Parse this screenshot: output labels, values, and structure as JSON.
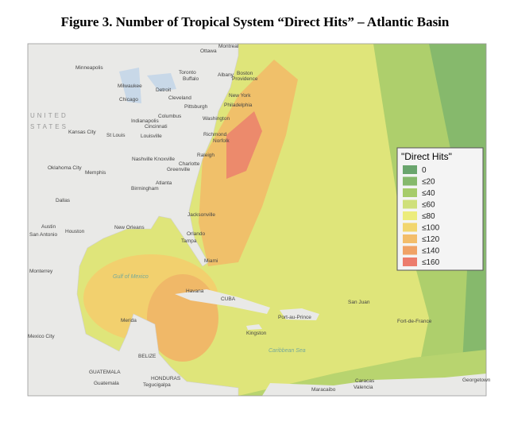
{
  "header": {
    "title": "Figure 3. Number of Tropical System “Direct Hits” – Atlantic Basin"
  },
  "map": {
    "labels": [
      "Montreal",
      "Ottawa",
      "Toronto",
      "Buffalo",
      "Albany",
      "Boston",
      "Providence",
      "Minneapolis",
      "Milwaukee",
      "Detroit",
      "Chicago",
      "Cleveland",
      "New York",
      "Pittsburgh",
      "Philadelphia",
      "Columbus",
      "Indianapolis",
      "Cincinnati",
      "Washington",
      "Kansas City",
      "St Louis",
      "Louisville",
      "Richmond",
      "Norfolk",
      "Raleigh",
      "Nashville",
      "Knoxville",
      "Charlotte",
      "Greenville",
      "Oklahoma City",
      "Memphis",
      "Atlanta",
      "Birmingham",
      "Dallas",
      "Jacksonville",
      "Austin",
      "Houston",
      "San Antonio",
      "New Orleans",
      "Orlando",
      "Tampa",
      "Miami",
      "Monterrey",
      "Havana",
      "CUBA",
      "San Juan",
      "Port-au-Prince",
      "Merida",
      "Kingston",
      "Mexico City",
      "BELIZE",
      "GUATEMALA",
      "Guatemala",
      "HONDURAS",
      "Tegucigalpa",
      "Maracaibo",
      "Caracas",
      "Valencia",
      "Georgetown",
      "Fort-de-France"
    ],
    "regions": [
      "UNITED",
      "STATES"
    ],
    "seas": [
      "Gulf of Mexico",
      "Caribbean Sea"
    ]
  },
  "legend": {
    "title": "\"Direct Hits\"",
    "items": [
      {
        "label": "0",
        "color": "#6aa56d"
      },
      {
        "label": "≤20",
        "color": "#86b96c"
      },
      {
        "label": "≤40",
        "color": "#a6cc6a"
      },
      {
        "label": "≤60",
        "color": "#cfe07a"
      },
      {
        "label": "≤80",
        "color": "#ecec7c"
      },
      {
        "label": "≤100",
        "color": "#f2d66e"
      },
      {
        "label": "≤120",
        "color": "#f3bd6a"
      },
      {
        "label": "≤140",
        "color": "#f0a266"
      },
      {
        "label": "≤160",
        "color": "#ec7c6c"
      }
    ]
  }
}
